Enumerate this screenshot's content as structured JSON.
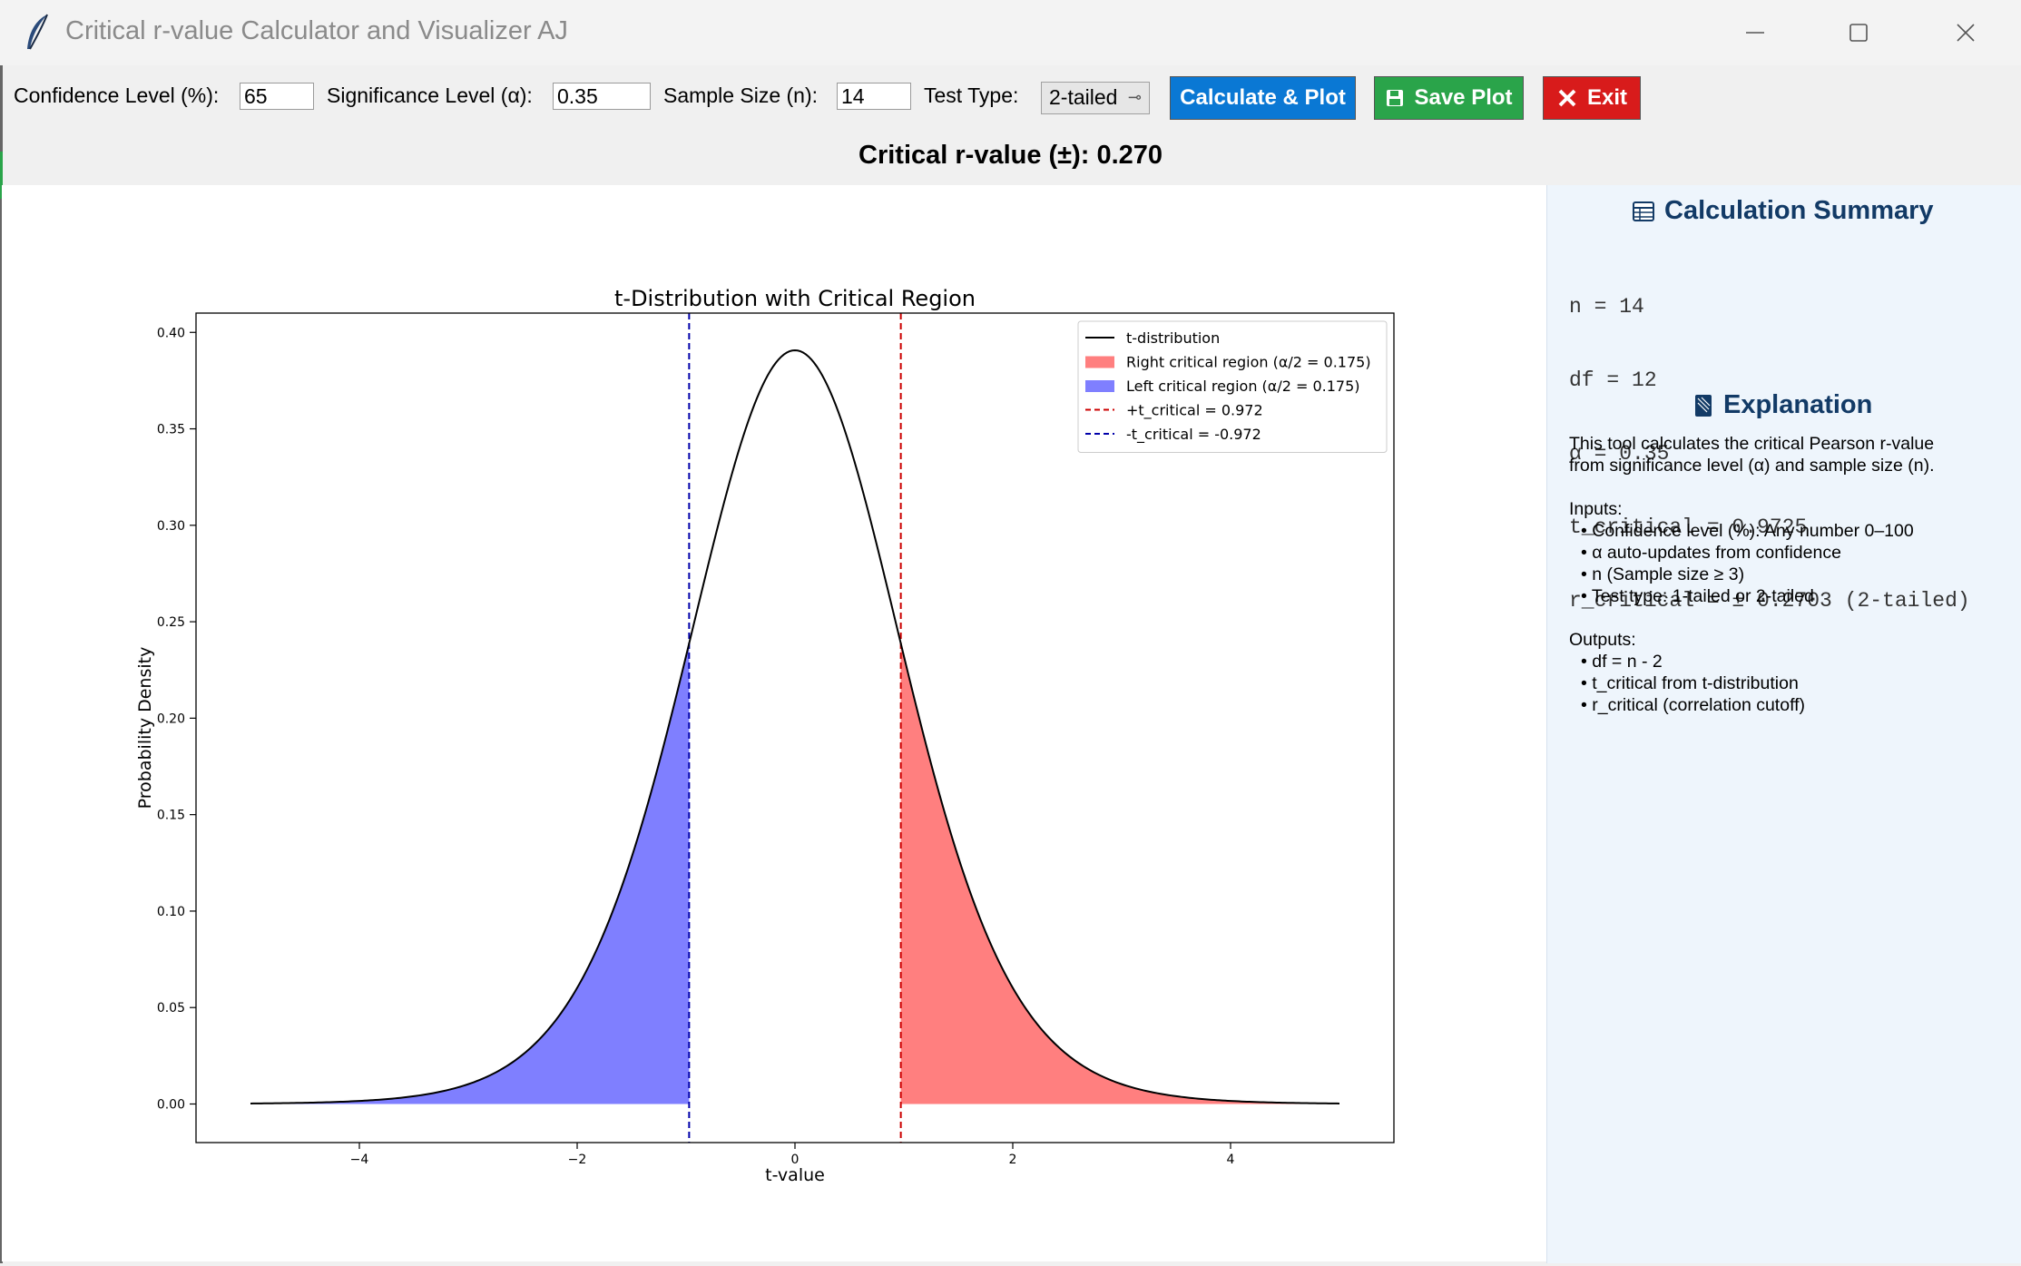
{
  "window": {
    "title": "Critical r-value Calculator and Visualizer AJ",
    "controls": [
      "minimize-icon",
      "maximize-icon",
      "close-icon"
    ]
  },
  "toolbar": {
    "confidence_label": "Confidence Level (%):",
    "confidence_value": "65",
    "significance_label": "Significance Level (α):",
    "significance_value": "0.35",
    "sample_label": "Sample Size (n):",
    "sample_value": "14",
    "test_type_label": "Test Type:",
    "test_type_value": "2-tailed",
    "calc_label": "Calculate & Plot",
    "save_label": "Save Plot",
    "exit_label": "Exit",
    "colors": {
      "calc": "#0a78d4",
      "save": "#2aa44a",
      "exit": "#d81b1b"
    }
  },
  "result": {
    "text": "Critical r-value (±): 0.270"
  },
  "sidebar": {
    "summary_title": "Calculation Summary",
    "summary_lines": [
      "n = 14",
      "df = 12",
      "α = 0.35",
      "t_critical = 0.9725",
      "r_critical = ± 0.2703 (2-tailed)"
    ],
    "explanation_title": "Explanation",
    "explanation_lines": [
      "This tool calculates the critical Pearson r-value",
      "from significance level (α) and sample size (n).",
      "",
      "Inputs:",
      "• Confidence level (%): Any number 0–100",
      "• α auto-updates from confidence",
      "• n (Sample size ≥ 3)",
      "• Test type: 1-tailed or 2-tailed",
      "",
      "Outputs:",
      "• df = n - 2",
      "• t_critical from t-distribution",
      "• r_critical (correlation cutoff)"
    ]
  },
  "chart_data": {
    "type": "line",
    "title": "t-Distribution with Critical Region",
    "xlabel": "t-value",
    "ylabel": "Probability Density",
    "xlim": [
      -5.5,
      5.5
    ],
    "ylim": [
      -0.02,
      0.41
    ],
    "xticks": [
      -4,
      -2,
      0,
      2,
      4
    ],
    "xtick_labels": [
      "−4",
      "−2",
      "0",
      "2",
      "4"
    ],
    "yticks": [
      0.0,
      0.05,
      0.1,
      0.15,
      0.2,
      0.25,
      0.3,
      0.35,
      0.4
    ],
    "ytick_labels": [
      "0.00",
      "0.05",
      "0.10",
      "0.15",
      "0.20",
      "0.25",
      "0.30",
      "0.35",
      "0.40"
    ],
    "grid": false,
    "legend_position": "top-right",
    "df": 12,
    "x_range": [
      -5,
      5
    ],
    "t_critical": 0.972,
    "series": [
      {
        "name": "t-distribution",
        "kind": "line",
        "color": "#000000"
      },
      {
        "name": "Right critical region (α/2 = 0.175)",
        "kind": "fill",
        "from": 0.972,
        "to": 5,
        "color": "#ff7f7f"
      },
      {
        "name": "Left critical region (α/2 = 0.175)",
        "kind": "fill",
        "from": -5,
        "to": -0.972,
        "color": "#7f7fff"
      },
      {
        "name": "+t_critical = 0.972",
        "kind": "vline",
        "x": 0.972,
        "color": "#cc0000"
      },
      {
        "name": "-t_critical = -0.972",
        "kind": "vline",
        "x": -0.972,
        "color": "#0000aa"
      }
    ]
  }
}
